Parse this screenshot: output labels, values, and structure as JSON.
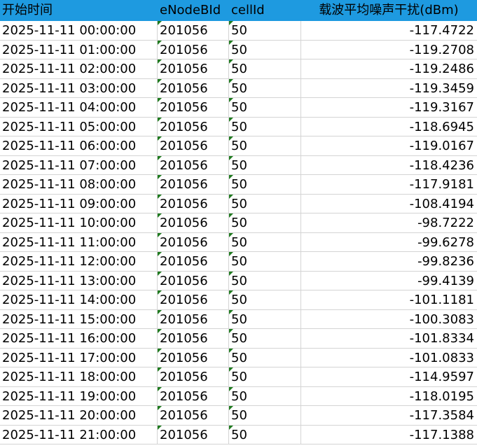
{
  "table": {
    "header": [
      "开始时间",
      "eNodeBId",
      "cellId",
      "载波平均噪声干扰(dBm)"
    ],
    "rows": [
      [
        "2025-11-11 00:00:00",
        "201056",
        "50",
        "-117.4722"
      ],
      [
        "2025-11-11 01:00:00",
        "201056",
        "50",
        "-119.2708"
      ],
      [
        "2025-11-11 02:00:00",
        "201056",
        "50",
        "-119.2486"
      ],
      [
        "2025-11-11 03:00:00",
        "201056",
        "50",
        "-119.3459"
      ],
      [
        "2025-11-11 04:00:00",
        "201056",
        "50",
        "-119.3167"
      ],
      [
        "2025-11-11 05:00:00",
        "201056",
        "50",
        "-118.6945"
      ],
      [
        "2025-11-11 06:00:00",
        "201056",
        "50",
        "-119.0167"
      ],
      [
        "2025-11-11 07:00:00",
        "201056",
        "50",
        "-118.4236"
      ],
      [
        "2025-11-11 08:00:00",
        "201056",
        "50",
        "-117.9181"
      ],
      [
        "2025-11-11 09:00:00",
        "201056",
        "50",
        "-108.4194"
      ],
      [
        "2025-11-11 10:00:00",
        "201056",
        "50",
        "-98.7222"
      ],
      [
        "2025-11-11 11:00:00",
        "201056",
        "50",
        "-99.6278"
      ],
      [
        "2025-11-11 12:00:00",
        "201056",
        "50",
        "-99.8236"
      ],
      [
        "2025-11-11 13:00:00",
        "201056",
        "50",
        "-99.4139"
      ],
      [
        "2025-11-11 14:00:00",
        "201056",
        "50",
        "-101.1181"
      ],
      [
        "2025-11-11 15:00:00",
        "201056",
        "50",
        "-100.3083"
      ],
      [
        "2025-11-11 16:00:00",
        "201056",
        "50",
        "-101.8334"
      ],
      [
        "2025-11-11 17:00:00",
        "201056",
        "50",
        "-101.0833"
      ],
      [
        "2025-11-11 18:00:00",
        "201056",
        "50",
        "-114.9597"
      ],
      [
        "2025-11-11 19:00:00",
        "201056",
        "50",
        "-118.0195"
      ],
      [
        "2025-11-11 20:00:00",
        "201056",
        "50",
        "-117.3584"
      ],
      [
        "2025-11-11 21:00:00",
        "201056",
        "50",
        "-117.1388"
      ]
    ]
  }
}
